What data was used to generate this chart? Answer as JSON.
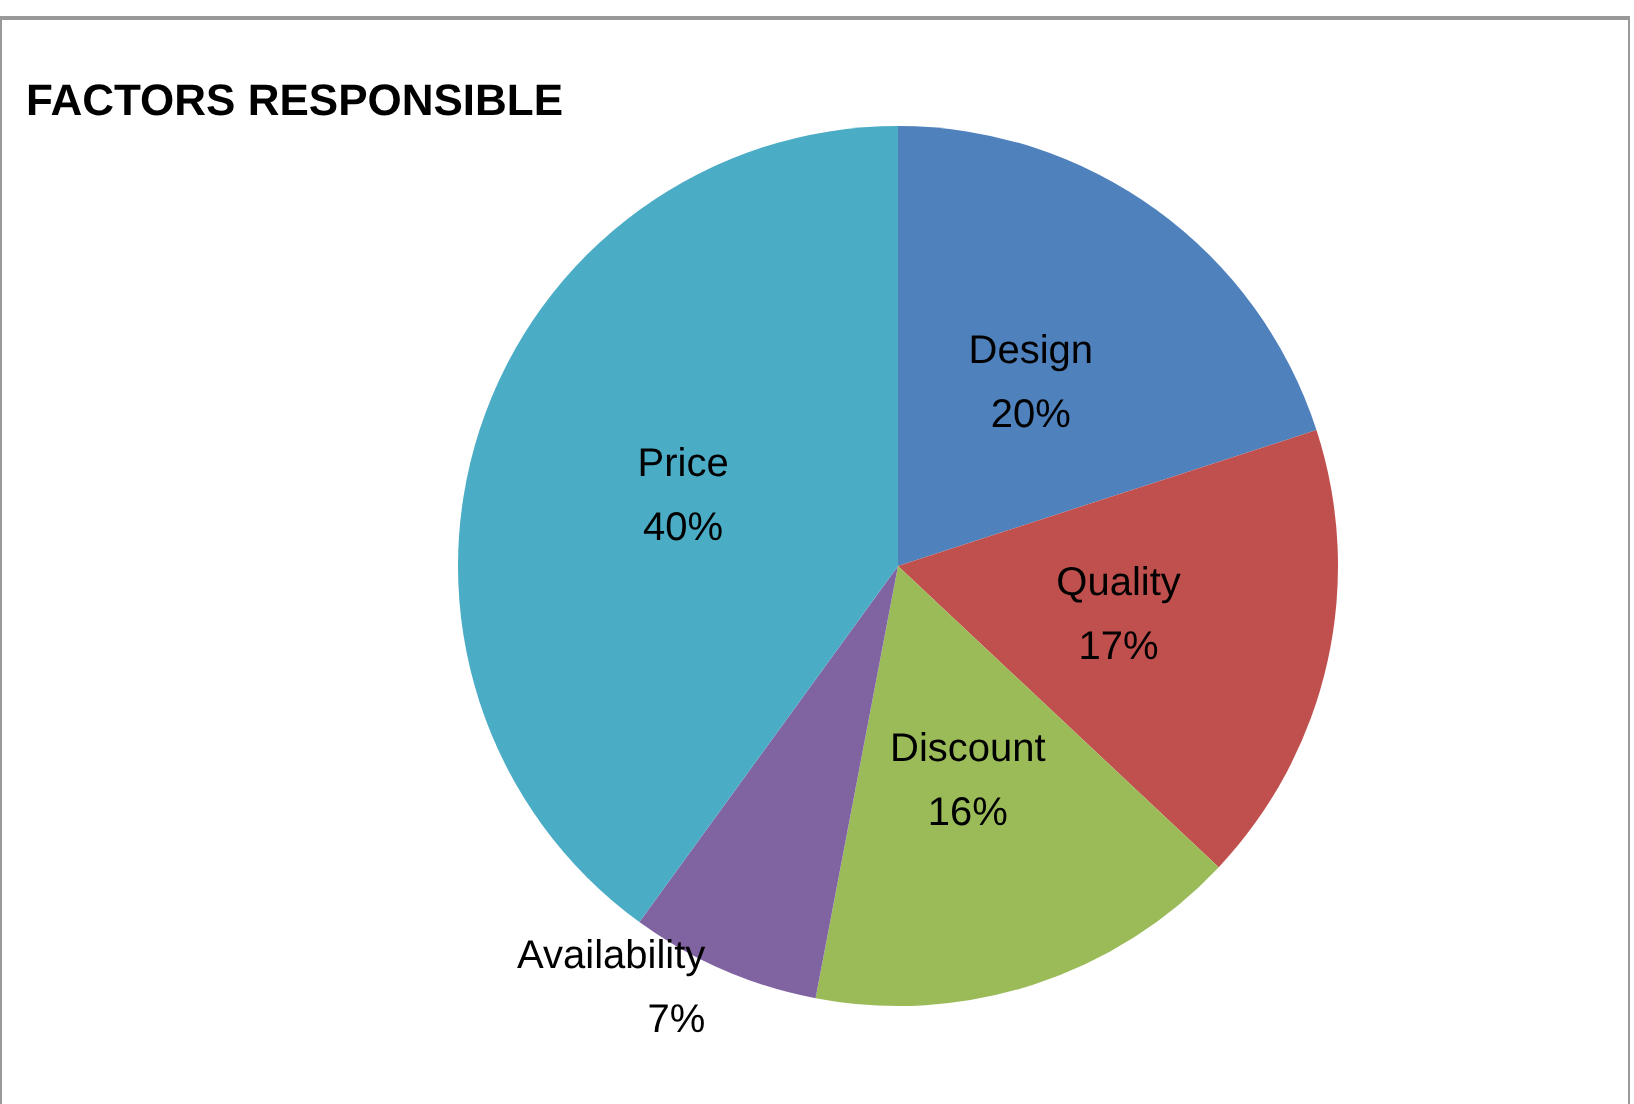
{
  "chart_data": {
    "type": "pie",
    "title": "FACTORS RESPONSIBLE",
    "categories": [
      "Design",
      "Quality",
      "Discount",
      "Availability",
      "Price"
    ],
    "values": [
      20,
      17,
      16,
      7,
      40
    ],
    "value_labels": [
      "20%",
      "17%",
      "16%",
      "7%",
      "40%"
    ],
    "colors": [
      "#4f81bd",
      "#c0504d",
      "#9bbb59",
      "#8064a2",
      "#4bacc6"
    ],
    "legend": false
  }
}
